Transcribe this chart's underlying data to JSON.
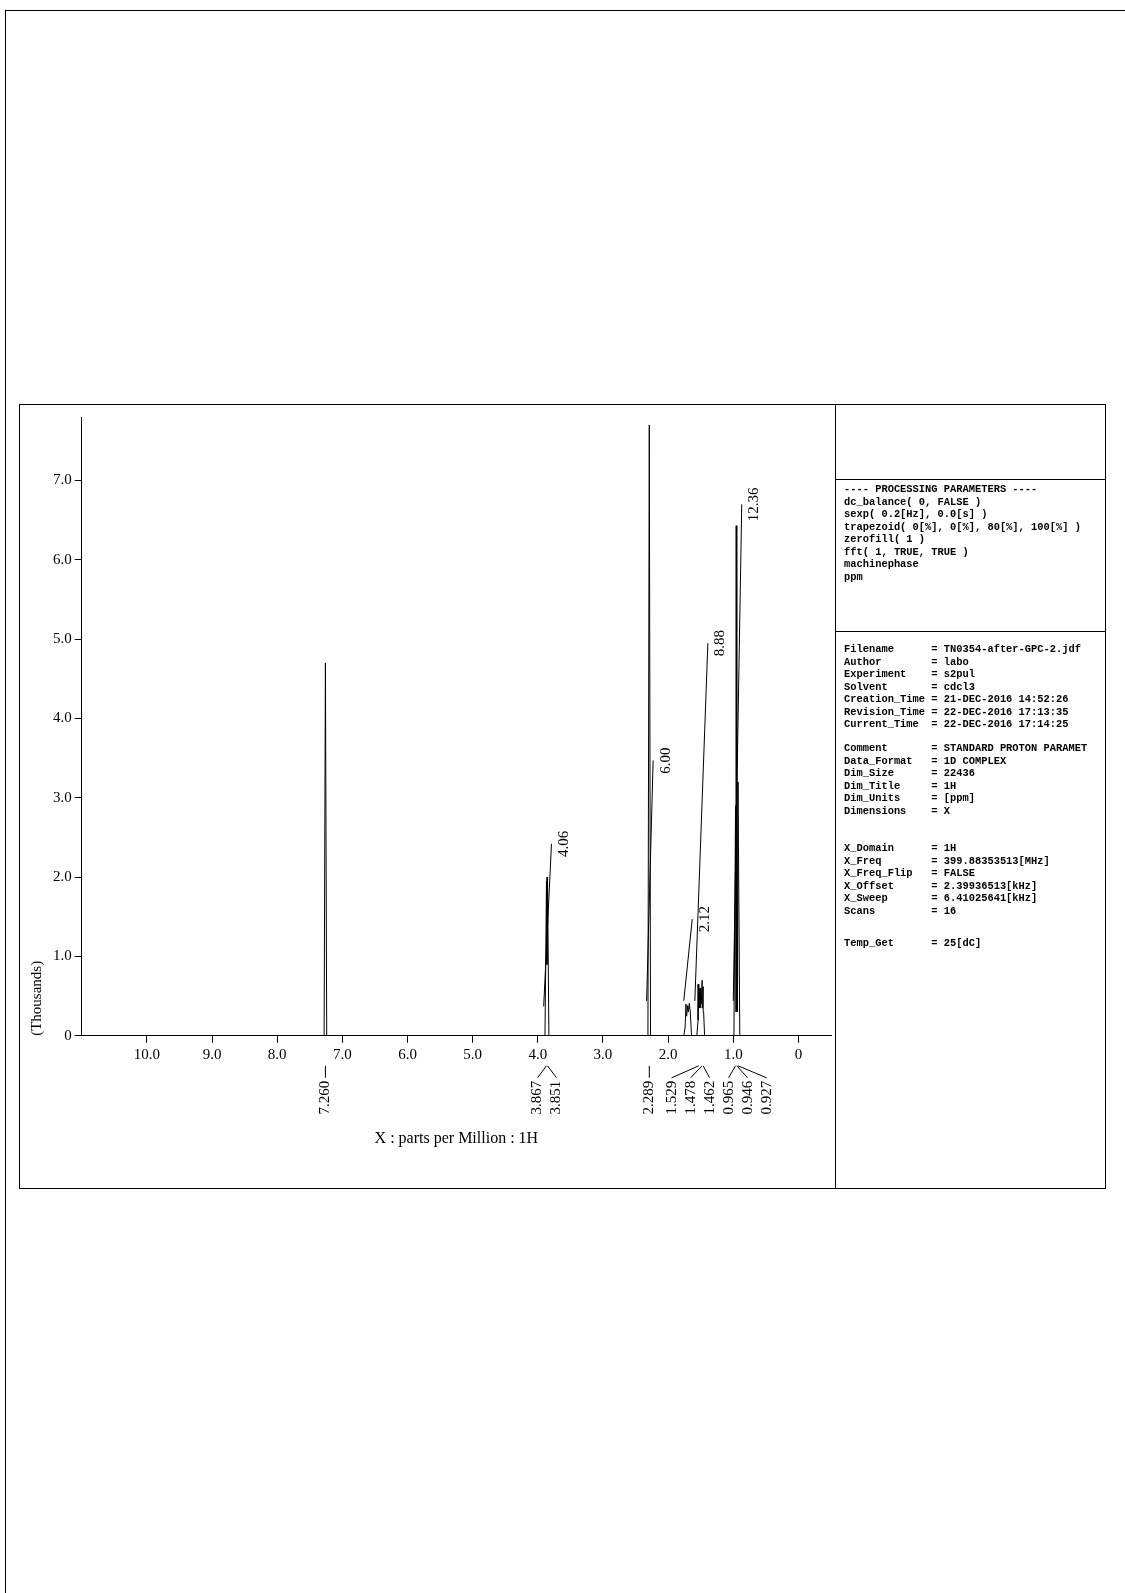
{
  "chart_data": {
    "type": "line",
    "xlabel": "X : parts per Million : 1H",
    "ylabel": "(Thousands)",
    "x": [
      -0.5,
      0.9,
      0.927,
      0.936,
      0.946,
      0.955,
      0.965,
      0.99,
      1.44,
      1.455,
      1.462,
      1.47,
      1.478,
      1.49,
      1.5,
      1.51,
      1.52,
      1.529,
      1.54,
      1.56,
      1.64,
      1.66,
      1.675,
      1.69,
      1.7,
      1.715,
      1.725,
      1.74,
      1.76,
      2.27,
      2.289,
      2.31,
      3.83,
      3.851,
      3.859,
      3.867,
      3.89,
      7.24,
      7.26,
      7.28,
      11
    ],
    "series": [
      {
        "color": "#000000",
        "values": [
          0,
          0,
          3.2,
          0.3,
          6.43,
          0.3,
          2.9,
          0,
          0,
          0.3,
          0.62,
          0.35,
          0.7,
          0.4,
          0.6,
          0.35,
          0.5,
          0.65,
          0.2,
          0,
          0,
          0.3,
          0.41,
          0.3,
          0.38,
          0.25,
          0.4,
          0.1,
          0,
          0,
          7.7,
          0,
          0,
          2.0,
          0.9,
          1.95,
          0,
          0,
          4.7,
          0,
          0
        ]
      },
      {
        "color": "#000000",
        "x": [
          0.87,
          1.0
        ],
        "values": [
          6.7,
          0.44
        ]
      },
      {
        "color": "#000000",
        "x": [
          1.39,
          1.59
        ],
        "values": [
          4.95,
          0.44
        ]
      },
      {
        "color": "#000000",
        "x": [
          1.63,
          1.76
        ],
        "values": [
          1.47,
          0.44
        ]
      },
      {
        "color": "#000000",
        "x": [
          2.23,
          2.33
        ],
        "values": [
          3.47,
          0.44
        ]
      },
      {
        "color": "#000000",
        "x": [
          3.79,
          3.91
        ],
        "values": [
          2.42,
          0.37
        ]
      }
    ],
    "xlim": [
      11,
      -0.5
    ],
    "xticks": [
      0,
      {
        "value": 1,
        "label": "1.0"
      },
      {
        "value": 2,
        "label": "2.0"
      },
      {
        "value": 3,
        "label": "3.0"
      },
      {
        "value": 4,
        "label": "4.0"
      },
      {
        "value": 5,
        "label": "5.0"
      },
      {
        "value": 6,
        "label": "6.0"
      },
      {
        "value": 7,
        "label": "7.0"
      },
      {
        "value": 8,
        "label": "8.0"
      },
      {
        "value": 9,
        "label": "9.0"
      },
      {
        "value": 10,
        "label": "10.0"
      }
    ],
    "ylim": [
      0,
      7.8
    ],
    "yticks": [
      0,
      {
        "value": 1,
        "label": "1.0"
      },
      {
        "value": 2,
        "label": "2.0"
      },
      {
        "value": 3,
        "label": "3.0"
      },
      {
        "value": 4,
        "label": "4.0"
      },
      {
        "value": 5,
        "label": "5.0"
      },
      {
        "value": 6,
        "label": "6.0"
      },
      {
        "value": 7,
        "label": "7.0"
      }
    ],
    "grid": false,
    "legend": false,
    "marker": "none",
    "line_style": "solid",
    "annotations": [
      "---- PROCESSING PARAMETERS ----\ndc_balance( 0, FALSE )\nsexp( 0.2[Hz], 0.0[s] )\ntrapezoid( 0[%], 0[%], 80[%], 100[%] )\nzerofill( 1 )\nfft( 1, TRUE, TRUE )\nmachinephase\nppm",
      "Filename      = TN0354-after-GPC-2.jdf\nAuthor        = labo\nExperiment    = s2pul\nSolvent       = cdcl3\nCreation_Time = 21-DEC-2016 14:52:26\nRevision_Time = 22-DEC-2016 17:13:35\nCurrent_Time  = 22-DEC-2016 17:14:25",
      "Comment       = STANDARD PROTON PARAMET\nData_Format   = 1D COMPLEX\nDim_Size      = 22436\nDim_Title     = 1H\nDim_Units     = [ppm]\nDimensions    = X",
      "X_Domain      = 1H\nX_Freq        = 399.88353513[MHz]\nX_Freq_Flip   = FALSE\nX_Offset      = 2.39936513[kHz]\nX_Sweep       = 6.41025641[kHz]\nScans         = 16",
      "Temp_Get      = 25[dC]",
      {
        "text": "12.36",
        "x": 0.87,
        "y": 6.7
      },
      {
        "text": "8.88",
        "x": 1.39,
        "y": 4.95
      },
      {
        "text": "2.12",
        "x": 1.63,
        "y": 1.47
      },
      {
        "text": "6.00",
        "x": 2.23,
        "y": 3.47
      },
      {
        "text": "4.06",
        "x": 3.79,
        "y": 2.42
      },
      {
        "text": "0.927",
        "x": 0.927
      },
      {
        "text": "0.946",
        "x": 0.946
      },
      {
        "text": "0.965",
        "x": 0.965
      },
      {
        "text": "1.462",
        "x": 1.462
      },
      {
        "text": "1.478",
        "x": 1.478
      },
      {
        "text": "1.529",
        "x": 1.529
      },
      {
        "text": "2.289",
        "x": 2.289
      },
      {
        "text": "3.851",
        "x": 3.851
      },
      {
        "text": "3.867",
        "x": 3.867
      },
      {
        "text": "7.260",
        "x": 7.26
      }
    ]
  }
}
